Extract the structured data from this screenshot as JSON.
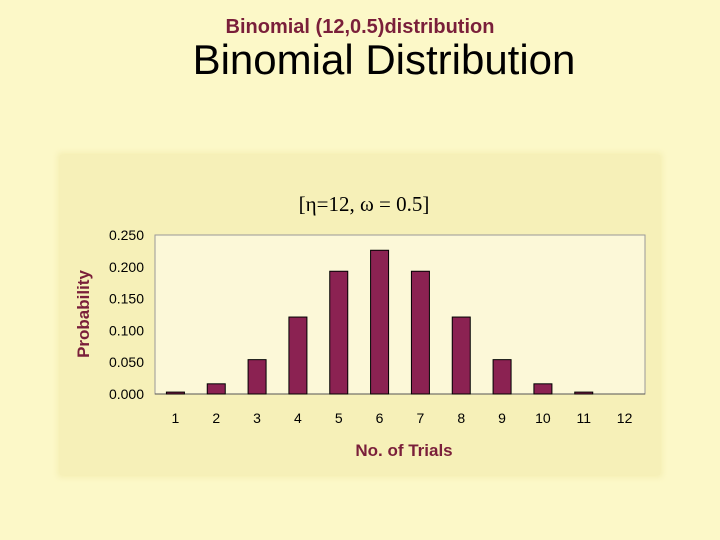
{
  "slide": {
    "title": "Binomial Distribution"
  },
  "colors": {
    "background": "#fcf8c8",
    "panel": "#f6f0b8",
    "bar": "#8b2252",
    "accent_text": "#7a1f3a"
  },
  "chart_data": {
    "type": "bar",
    "title": "Binomial (12,0.5)distribution",
    "subtitle": "[η=12, ω = 0.5]",
    "xlabel": "No. of Trials",
    "ylabel": "Probability",
    "categories": [
      "1",
      "2",
      "3",
      "4",
      "5",
      "6",
      "7",
      "8",
      "9",
      "10",
      "11",
      "12"
    ],
    "values": [
      0.003,
      0.016,
      0.054,
      0.121,
      0.193,
      0.226,
      0.193,
      0.121,
      0.054,
      0.016,
      0.003,
      0.0
    ],
    "ylim": [
      0,
      0.25
    ],
    "yticks": [
      "0.000",
      "0.050",
      "0.100",
      "0.150",
      "0.200",
      "0.250"
    ],
    "grid": true,
    "legend": "none"
  }
}
